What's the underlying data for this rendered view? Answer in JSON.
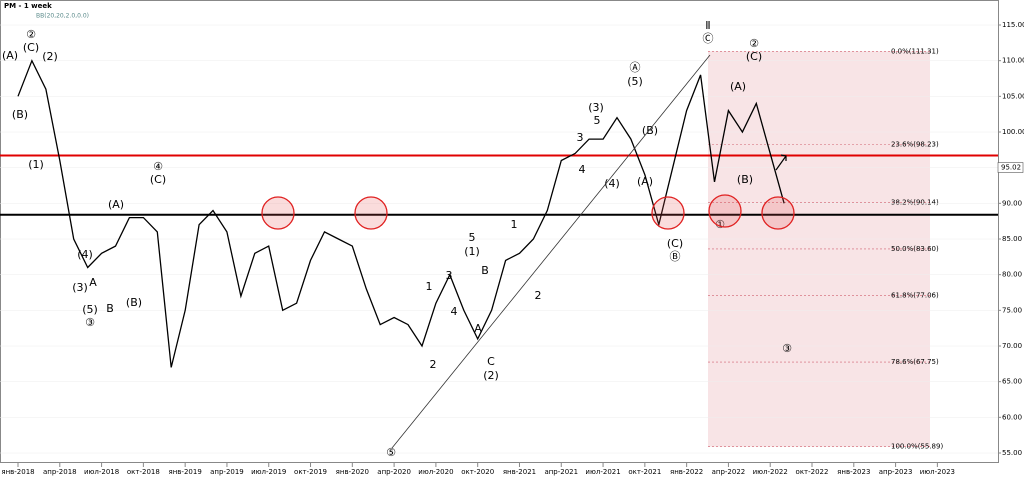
{
  "chart_data": {
    "type": "line",
    "title": "PM - 1 week",
    "subtitle": "BB(20,20,2.0,0.0)",
    "x": [
      "2018-01",
      "2018-02",
      "2018-03",
      "2018-04",
      "2018-05",
      "2018-06",
      "2018-07",
      "2018-08",
      "2018-09",
      "2018-10",
      "2018-11",
      "2018-12",
      "2019-01",
      "2019-02",
      "2019-03",
      "2019-04",
      "2019-05",
      "2019-06",
      "2019-07",
      "2019-08",
      "2019-09",
      "2019-10",
      "2019-11",
      "2019-12",
      "2020-01",
      "2020-02",
      "2020-03",
      "2020-04",
      "2020-05",
      "2020-06",
      "2020-07",
      "2020-08",
      "2020-09",
      "2020-10",
      "2020-11",
      "2020-12",
      "2021-01",
      "2021-02",
      "2021-03",
      "2021-04",
      "2021-05",
      "2021-06",
      "2021-07",
      "2021-08",
      "2021-09",
      "2021-10",
      "2021-11",
      "2021-12",
      "2022-01",
      "2022-02",
      "2022-03",
      "2022-04",
      "2022-05",
      "2022-06",
      "2022-07",
      "2022-08"
    ],
    "series": [
      {
        "name": "PM",
        "color": "#000000",
        "values": [
          105,
          110,
          106,
          96,
          85,
          81,
          83,
          84,
          88,
          88,
          86,
          67,
          75,
          87,
          89,
          86,
          77,
          83,
          84,
          75,
          76,
          82,
          86,
          85,
          84,
          78,
          73,
          74,
          73,
          70,
          76,
          80,
          75,
          71,
          75,
          82,
          83,
          85,
          89,
          96,
          97,
          99,
          99,
          102,
          99,
          94,
          87,
          95,
          103,
          108,
          93,
          103,
          100,
          104,
          97,
          90
        ]
      }
    ],
    "ylim": [
      55,
      115
    ],
    "yticks": [
      {
        "value": 115,
        "label": "115.00"
      },
      {
        "value": 110,
        "label": "110.00"
      },
      {
        "value": 105,
        "label": "105.00"
      },
      {
        "value": 100,
        "label": "100.00"
      },
      {
        "value": 95,
        "label": "95.00"
      },
      {
        "value": 90,
        "label": "90.00"
      },
      {
        "value": 85,
        "label": "85.00"
      },
      {
        "value": 80,
        "label": "80.00"
      },
      {
        "value": 75,
        "label": "75.00"
      },
      {
        "value": 70,
        "label": "70.00"
      },
      {
        "value": 65,
        "label": "65.00"
      },
      {
        "value": 60,
        "label": "60.00"
      },
      {
        "value": 55,
        "label": "55.00"
      }
    ],
    "xticks": [
      {
        "value": "2018-01",
        "label": "янв-2018"
      },
      {
        "value": "2018-04",
        "label": "апр-2018"
      },
      {
        "value": "2018-07",
        "label": "июл-2018"
      },
      {
        "value": "2018-10",
        "label": "окт-2018"
      },
      {
        "value": "2019-01",
        "label": "янв-2019"
      },
      {
        "value": "2019-04",
        "label": "апр-2019"
      },
      {
        "value": "2019-07",
        "label": "июл-2019"
      },
      {
        "value": "2019-10",
        "label": "окт-2019"
      },
      {
        "value": "2020-01",
        "label": "янв-2020"
      },
      {
        "value": "2020-04",
        "label": "апр-2020"
      },
      {
        "value": "2020-07",
        "label": "июл-2020"
      },
      {
        "value": "2020-10",
        "label": "окт-2020"
      },
      {
        "value": "2021-01",
        "label": "янв-2021"
      },
      {
        "value": "2021-04",
        "label": "апр-2021"
      },
      {
        "value": "2021-07",
        "label": "июл-2021"
      },
      {
        "value": "2021-10",
        "label": "окт-2021"
      },
      {
        "value": "2022-01",
        "label": "янв-2022"
      },
      {
        "value": "2022-04",
        "label": "апр-2022"
      },
      {
        "value": "2022-07",
        "label": "июл-2022"
      },
      {
        "value": "2022-10",
        "label": "окт-2022"
      },
      {
        "value": "2023-01",
        "label": "янв-2023"
      },
      {
        "value": "2023-04",
        "label": "апр-2023"
      },
      {
        "value": "2023-07",
        "label": "июл-2023"
      }
    ],
    "grid": true,
    "last_price": 95.02,
    "resistance": 96.7,
    "support": 88.4,
    "fib_levels": [
      {
        "value": 111.31,
        "label": "0.0%(111.31)"
      },
      {
        "value": 98.23,
        "label": "23.6%(98.23)"
      },
      {
        "value": 90.14,
        "label": "38.2%(90.14)"
      },
      {
        "value": 83.6,
        "label": "50.0%(83.60)"
      },
      {
        "value": 77.06,
        "label": "61.8%(77.06)"
      },
      {
        "value": 67.75,
        "label": "78.6%(67.75)"
      },
      {
        "value": 55.89,
        "label": "100.0%(55.89)"
      }
    ],
    "annotations": [
      "(A)",
      "(B)",
      "②",
      "(C)",
      "(2)",
      "(1)",
      "④",
      "(C)",
      "(A)",
      "(5)",
      "③",
      "B",
      "A",
      "(B)",
      "(4)",
      "(3)",
      "⑤",
      "(1)",
      "5",
      "4",
      "3",
      "1",
      "2",
      "A",
      "B",
      "C",
      "(2)",
      "1",
      "2",
      "3",
      "4",
      "5",
      "(3)",
      "Ⓐ",
      "(5)",
      "(B)",
      "(A)",
      "(4)",
      "(C)",
      "Ⓑ",
      "Ⅱ",
      "Ⓒ",
      "②",
      "(C)",
      "(A)",
      "(B)",
      "①",
      "③"
    ]
  }
}
